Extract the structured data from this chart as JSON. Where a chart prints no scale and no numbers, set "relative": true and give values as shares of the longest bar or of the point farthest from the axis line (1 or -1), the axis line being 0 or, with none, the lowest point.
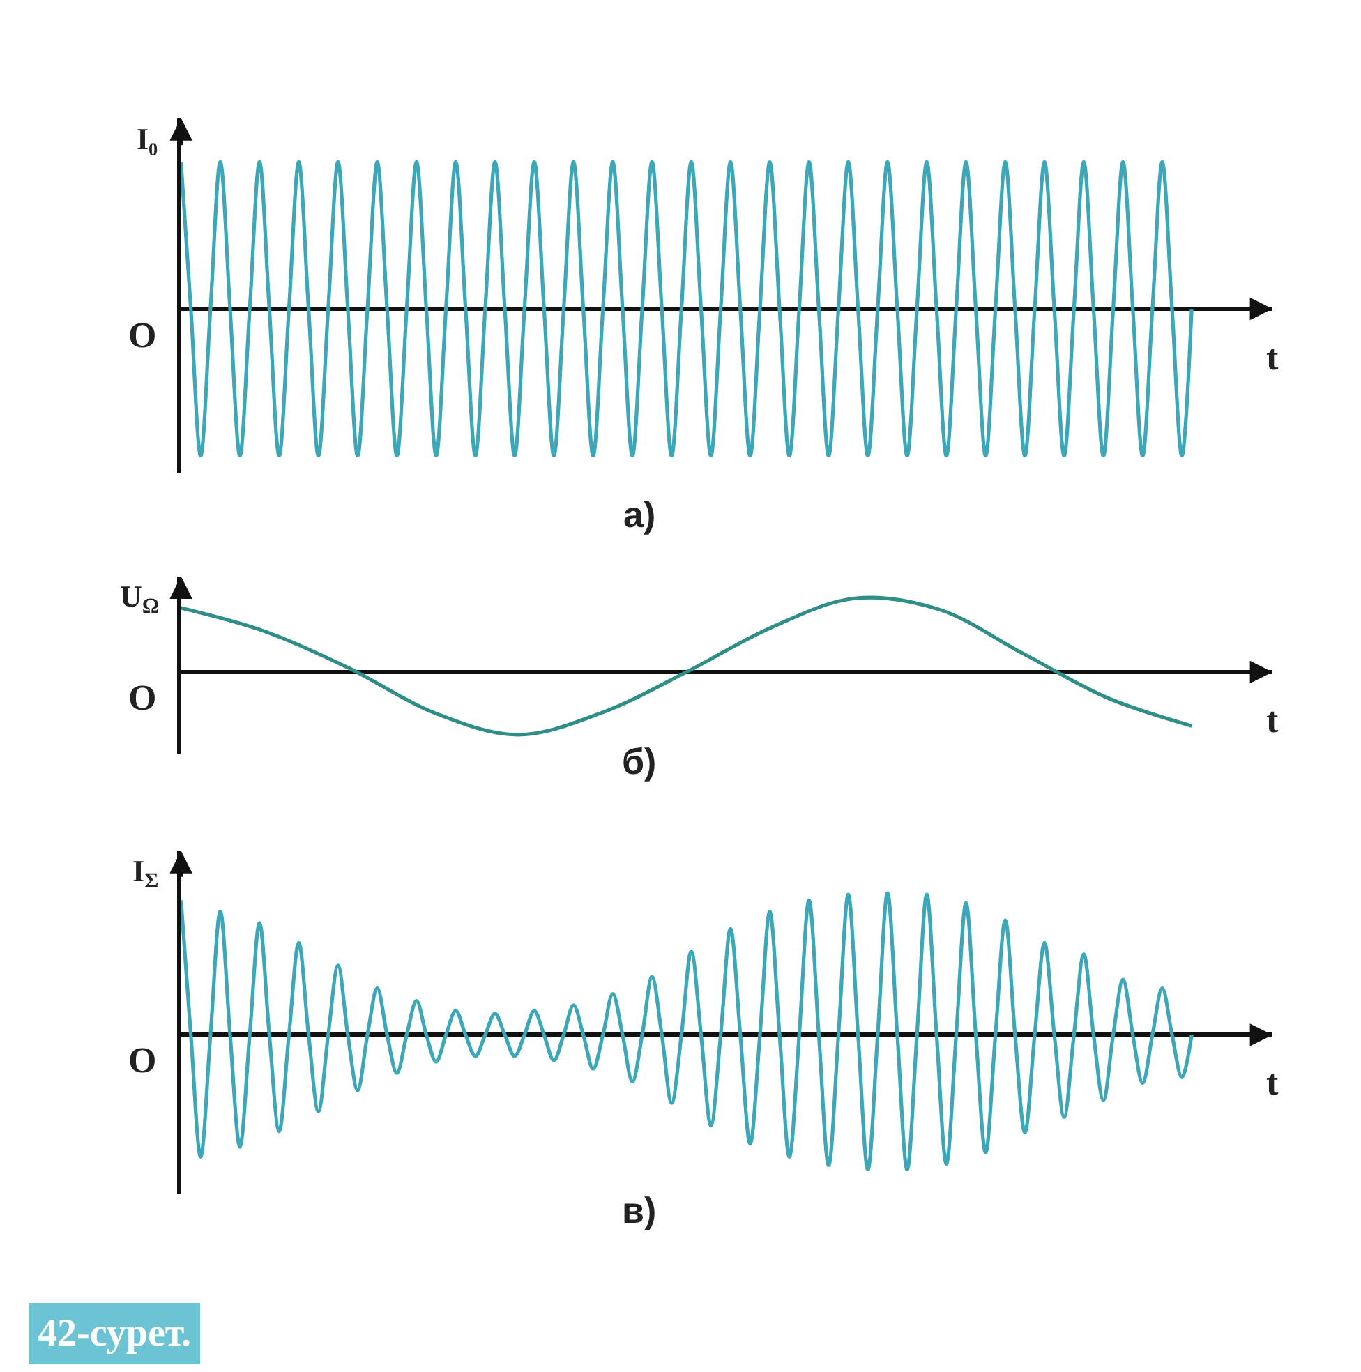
{
  "chart_data": [
    {
      "type": "line",
      "relative": true,
      "ylabel": "I₀",
      "xlabel": "t",
      "annotations": [
        "O",
        "а)"
      ],
      "categories": [
        null,
        null,
        null,
        null,
        null,
        null,
        null,
        null,
        null,
        null,
        null,
        null,
        null,
        null,
        null,
        null,
        null,
        null,
        null,
        null,
        null,
        null,
        null,
        null,
        null,
        null,
        null,
        null,
        null,
        null,
        null,
        null,
        null,
        null,
        null,
        null,
        null,
        null,
        null,
        null,
        null,
        null,
        null,
        null,
        null,
        null,
        null,
        null,
        null,
        null,
        null,
        null,
        null,
        null,
        null,
        null,
        null,
        null,
        null,
        null,
        null,
        null,
        null,
        null,
        null,
        null,
        null,
        null,
        null,
        null,
        null,
        null,
        null,
        null,
        null,
        null,
        null,
        null,
        null,
        null,
        null,
        null,
        null,
        null,
        null,
        null,
        null,
        null,
        null,
        null,
        null,
        null,
        null,
        null,
        null,
        null,
        null,
        null,
        null,
        null,
        null,
        null,
        null,
        null
      ],
      "series": [
        {
          "color": "#3ba7b8",
          "values": [
            1,
            0,
            -1,
            0,
            1,
            0,
            -1,
            0,
            1,
            0,
            -1,
            0,
            1,
            0,
            -1,
            0,
            1,
            0,
            -1,
            0,
            1,
            0,
            -1,
            0,
            1,
            0,
            -1,
            0,
            1,
            0,
            -1,
            0,
            1,
            0,
            -1,
            0,
            1,
            0,
            -1,
            0,
            1,
            0,
            -1,
            0,
            1,
            0,
            -1,
            0,
            1,
            0,
            -1,
            0,
            1,
            0,
            -1,
            0,
            1,
            0,
            -1,
            0,
            1,
            0,
            -1,
            0,
            1,
            0,
            -1,
            0,
            1,
            0,
            -1,
            0,
            1,
            0,
            -1,
            0,
            1,
            0,
            -1,
            0,
            1,
            0,
            -1,
            0,
            1,
            0,
            -1,
            0,
            1,
            0,
            -1,
            0,
            1,
            0,
            -1,
            0,
            1,
            0,
            -1,
            0,
            1,
            0,
            -1,
            0
          ]
        }
      ]
    },
    {
      "type": "line",
      "relative": true,
      "ylabel": "U$_{Ω}$",
      "xlabel": "t",
      "annotations": [
        "O",
        "б)"
      ],
      "categories": [
        null,
        null,
        null,
        null,
        null,
        null,
        null,
        null,
        null,
        null,
        null,
        null,
        null
      ],
      "series": [
        {
          "color": "#2f8f88",
          "values": [
            0.87,
            0.55,
            0.05,
            -0.55,
            -0.85,
            -0.55,
            0,
            0.6,
            1,
            0.85,
            0.25,
            -0.35,
            -0.73
          ]
        }
      ]
    },
    {
      "type": "line",
      "relative": true,
      "ylabel": "I$_{Σ}$",
      "xlabel": "t",
      "annotations": [
        "O",
        "в)",
        "42-сурет."
      ],
      "categories": [
        null,
        null,
        null,
        null,
        null,
        null,
        null,
        null,
        null,
        null,
        null,
        null,
        null,
        null,
        null,
        null,
        null,
        null,
        null,
        null,
        null,
        null,
        null,
        null,
        null,
        null,
        null,
        null,
        null,
        null,
        null,
        null,
        null,
        null,
        null,
        null,
        null,
        null,
        null,
        null,
        null,
        null,
        null,
        null,
        null,
        null,
        null,
        null,
        null,
        null,
        null,
        null,
        null,
        null,
        null,
        null,
        null,
        null,
        null,
        null,
        null,
        null,
        null,
        null,
        null,
        null,
        null,
        null,
        null,
        null,
        null,
        null,
        null,
        null,
        null,
        null,
        null,
        null,
        null,
        null,
        null,
        null,
        null,
        null,
        null,
        null,
        null,
        null,
        null,
        null,
        null,
        null,
        null,
        null,
        null,
        null,
        null,
        null,
        null,
        null,
        null,
        null,
        null,
        null
      ],
      "series": [
        {
          "color": "#3ba7b8",
          "values": [
            0.95,
            0,
            -0.86,
            0,
            0.87,
            0,
            -0.79,
            0,
            0.79,
            0,
            -0.68,
            0,
            0.65,
            0,
            -0.54,
            0,
            0.49,
            0,
            -0.39,
            0,
            0.33,
            0,
            -0.27,
            0,
            0.24,
            0,
            -0.19,
            0,
            0.17,
            0,
            -0.15,
            0,
            0.15,
            0,
            -0.15,
            0,
            0.17,
            0,
            -0.18,
            0,
            0.21,
            0,
            -0.24,
            0,
            0.29,
            0,
            -0.33,
            0,
            0.41,
            0,
            -0.48,
            0,
            0.59,
            0,
            -0.64,
            0,
            0.75,
            0,
            -0.77,
            0,
            0.87,
            0,
            -0.86,
            0,
            0.95,
            0,
            -0.92,
            0,
            0.99,
            0,
            -0.95,
            0,
            1.0,
            0,
            -0.95,
            0,
            0.99,
            0,
            -0.91,
            0,
            0.93,
            0,
            -0.83,
            0,
            0.81,
            0,
            -0.69,
            0,
            0.65,
            0,
            -0.58,
            0,
            0.57,
            0,
            -0.46,
            0,
            0.39,
            0,
            -0.34,
            0,
            0.33,
            0,
            -0.3,
            0
          ]
        }
      ]
    }
  ]
}
